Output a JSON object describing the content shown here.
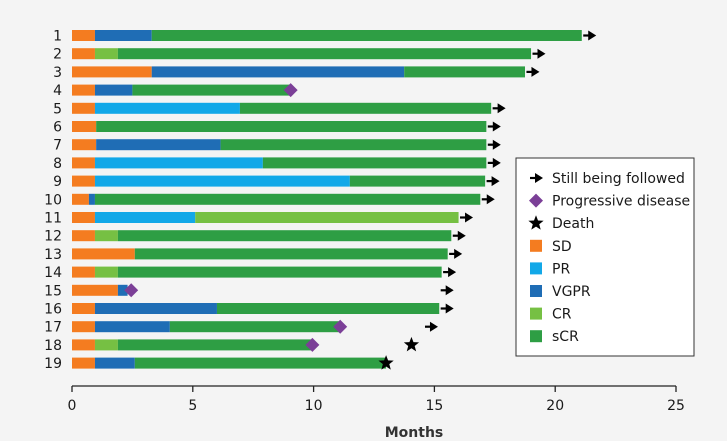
{
  "chart_data": {
    "type": "swimmer",
    "xlabel": "Months",
    "xlim": [
      0,
      25
    ],
    "xticks": [
      0,
      5,
      10,
      15,
      20,
      25
    ],
    "colors": {
      "SD": "#f47c20",
      "PR": "#12a8e8",
      "VGPR": "#1f6db5",
      "CR": "#76c043",
      "sCR": "#2e9e44",
      "progressive_marker": "#7b3f97",
      "death_marker": "#000000",
      "arrow": "#000000"
    },
    "legend": {
      "placement": "right",
      "entries": [
        {
          "label": "Still being followed",
          "symbol": "arrow"
        },
        {
          "label": "Progressive disease",
          "symbol": "diamond"
        },
        {
          "label": "Death",
          "symbol": "star"
        },
        {
          "label": "SD",
          "symbol": "SD"
        },
        {
          "label": "PR",
          "symbol": "PR"
        },
        {
          "label": "VGPR",
          "symbol": "VGPR"
        },
        {
          "label": "CR",
          "symbol": "CR"
        },
        {
          "label": "sCR",
          "symbol": "sCR"
        }
      ]
    },
    "patients": [
      {
        "id": "1",
        "segments": [
          [
            "SD",
            0,
            0.95
          ],
          [
            "VGPR",
            0.95,
            3.3
          ],
          [
            "sCR",
            3.3,
            21.1
          ]
        ],
        "marker": "arrow",
        "marker_x": 21.45
      },
      {
        "id": "2",
        "segments": [
          [
            "SD",
            0,
            0.95
          ],
          [
            "CR",
            0.95,
            1.9
          ],
          [
            "sCR",
            1.9,
            19.0
          ]
        ],
        "marker": "arrow",
        "marker_x": 19.35
      },
      {
        "id": "3",
        "segments": [
          [
            "SD",
            0,
            3.3
          ],
          [
            "VGPR",
            3.3,
            13.75
          ],
          [
            "sCR",
            13.75,
            18.75
          ]
        ],
        "marker": "arrow",
        "marker_x": 19.1
      },
      {
        "id": "4",
        "segments": [
          [
            "SD",
            0,
            0.95
          ],
          [
            "VGPR",
            0.95,
            2.5
          ],
          [
            "sCR",
            2.5,
            9.0
          ]
        ],
        "marker": "diamond",
        "marker_x": 9.05
      },
      {
        "id": "5",
        "segments": [
          [
            "SD",
            0,
            0.95
          ],
          [
            "PR",
            0.95,
            6.95
          ],
          [
            "sCR",
            6.95,
            17.35
          ]
        ],
        "marker": "arrow",
        "marker_x": 17.7
      },
      {
        "id": "6",
        "segments": [
          [
            "SD",
            0,
            1.0
          ],
          [
            "sCR",
            1.0,
            17.15
          ]
        ],
        "marker": "arrow",
        "marker_x": 17.5
      },
      {
        "id": "7",
        "segments": [
          [
            "SD",
            0,
            1.0
          ],
          [
            "VGPR",
            1.0,
            6.15
          ],
          [
            "sCR",
            6.15,
            17.15
          ]
        ],
        "marker": "arrow",
        "marker_x": 17.5
      },
      {
        "id": "8",
        "segments": [
          [
            "SD",
            0,
            0.95
          ],
          [
            "PR",
            0.95,
            7.9
          ],
          [
            "sCR",
            7.9,
            17.15
          ]
        ],
        "marker": "arrow",
        "marker_x": 17.5
      },
      {
        "id": "9",
        "segments": [
          [
            "SD",
            0,
            0.95
          ],
          [
            "PR",
            0.95,
            11.5
          ],
          [
            "sCR",
            11.5,
            17.1
          ]
        ],
        "marker": "arrow",
        "marker_x": 17.45
      },
      {
        "id": "10",
        "segments": [
          [
            "SD",
            0,
            0.7
          ],
          [
            "VGPR",
            0.7,
            0.95
          ],
          [
            "sCR",
            0.95,
            16.9
          ]
        ],
        "marker": "arrow",
        "marker_x": 17.25
      },
      {
        "id": "11",
        "segments": [
          [
            "SD",
            0,
            0.95
          ],
          [
            "PR",
            0.95,
            5.1
          ],
          [
            "CR",
            5.1,
            16.0
          ]
        ],
        "marker": "arrow",
        "marker_x": 16.35
      },
      {
        "id": "12",
        "segments": [
          [
            "SD",
            0,
            0.95
          ],
          [
            "CR",
            0.95,
            1.9
          ],
          [
            "sCR",
            1.9,
            15.7
          ]
        ],
        "marker": "arrow",
        "marker_x": 16.05
      },
      {
        "id": "13",
        "segments": [
          [
            "SD",
            0,
            2.6
          ],
          [
            "sCR",
            2.6,
            15.55
          ]
        ],
        "marker": "arrow",
        "marker_x": 15.9
      },
      {
        "id": "14",
        "segments": [
          [
            "SD",
            0,
            0.95
          ],
          [
            "CR",
            0.95,
            1.9
          ],
          [
            "sCR",
            1.9,
            15.3
          ]
        ],
        "marker": "arrow",
        "marker_x": 15.65
      },
      {
        "id": "15",
        "segments": [
          [
            "SD",
            0,
            1.9
          ],
          [
            "VGPR",
            1.9,
            2.3
          ]
        ],
        "marker": "diamond",
        "marker_x": 2.45,
        "extra_marker": "arrow",
        "extra_marker_x": 15.55
      },
      {
        "id": "16",
        "segments": [
          [
            "SD",
            0,
            0.95
          ],
          [
            "VGPR",
            0.95,
            6.0
          ],
          [
            "sCR",
            6.0,
            15.2
          ]
        ],
        "marker": "arrow",
        "marker_x": 15.55
      },
      {
        "id": "17",
        "segments": [
          [
            "SD",
            0,
            0.95
          ],
          [
            "VGPR",
            0.95,
            4.05
          ],
          [
            "sCR",
            4.05,
            11.05
          ]
        ],
        "marker": "diamond",
        "marker_x": 11.1,
        "extra_marker": "arrow",
        "extra_marker_x": 14.9
      },
      {
        "id": "18",
        "segments": [
          [
            "SD",
            0,
            0.95
          ],
          [
            "CR",
            0.95,
            1.9
          ],
          [
            "sCR",
            1.9,
            9.95
          ]
        ],
        "marker": "diamond",
        "marker_x": 9.95,
        "extra_marker": "star",
        "extra_marker_x": 14.05
      },
      {
        "id": "19",
        "segments": [
          [
            "SD",
            0,
            0.95
          ],
          [
            "VGPR",
            0.95,
            2.6
          ],
          [
            "sCR",
            2.6,
            13.0
          ]
        ],
        "marker": "star",
        "marker_x": 13.0
      }
    ]
  }
}
